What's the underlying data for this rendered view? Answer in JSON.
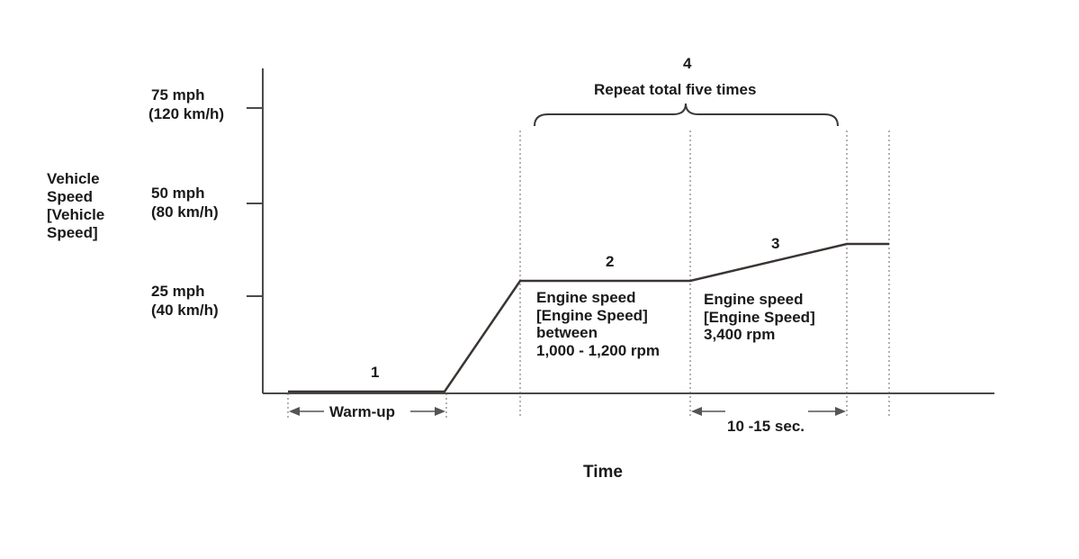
{
  "axes": {
    "y_label_lines": [
      "Vehicle",
      "Speed",
      "[Vehicle",
      "Speed]"
    ],
    "x_label": "Time",
    "ticks": [
      {
        "mph": "75 mph",
        "kmh": "(120 km/h)"
      },
      {
        "mph": "50 mph",
        "kmh": "(80 km/h)"
      },
      {
        "mph": "25 mph",
        "kmh": "(40 km/h)"
      }
    ]
  },
  "steps": {
    "step1": "1",
    "step2": "2",
    "step3": "3",
    "step4": "4"
  },
  "repeat_label": "Repeat total five times",
  "warmup_label": "Warm-up",
  "duration_label": "10 -15 sec.",
  "phase2_lines": [
    "Engine speed",
    "[Engine Speed]",
    "between",
    "1,000 - 1,200 rpm"
  ],
  "phase3_lines": [
    "Engine speed",
    "[Engine Speed]",
    "3,400 rpm"
  ]
}
